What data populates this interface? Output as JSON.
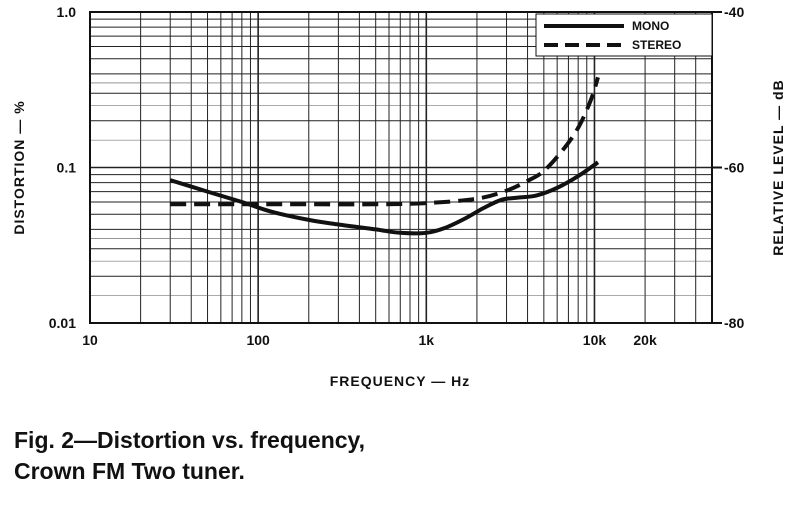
{
  "chart_data": {
    "type": "line",
    "title": "",
    "xlabel": "FREQUENCY — Hz",
    "ylabel": "DISTORTION — %",
    "y2label": "RELATIVE LEVEL — dB",
    "x_scale": "log",
    "y_scale": "log",
    "xlim": [
      10,
      50000
    ],
    "ylim": [
      0.01,
      1.0
    ],
    "y2lim": [
      -80,
      -40
    ],
    "x_ticks": [
      {
        "value": 10,
        "label": "10"
      },
      {
        "value": 100,
        "label": "100"
      },
      {
        "value": 1000,
        "label": "1k"
      },
      {
        "value": 10000,
        "label": "10k"
      },
      {
        "value": 20000,
        "label": "20k"
      }
    ],
    "y_ticks": [
      {
        "value": 1.0,
        "label": "1.0"
      },
      {
        "value": 0.1,
        "label": "0.1"
      },
      {
        "value": 0.01,
        "label": "0.01"
      }
    ],
    "y2_ticks": [
      {
        "value": -40,
        "label": "-40"
      },
      {
        "value": -60,
        "label": "-60"
      },
      {
        "value": -80,
        "label": "-80"
      }
    ],
    "grid": true,
    "legend": "top-right",
    "series": [
      {
        "name": "MONO",
        "style": "solid",
        "x": [
          30,
          50,
          80,
          120,
          200,
          300,
          500,
          700,
          1000,
          1300,
          1700,
          2200,
          2800,
          3500,
          4500,
          6000,
          8000,
          10500
        ],
        "y": [
          0.083,
          0.07,
          0.06,
          0.052,
          0.046,
          0.043,
          0.04,
          0.038,
          0.038,
          0.041,
          0.047,
          0.055,
          0.062,
          0.064,
          0.066,
          0.074,
          0.088,
          0.108
        ]
      },
      {
        "name": "STEREO",
        "style": "dashed",
        "x": [
          30,
          50,
          100,
          200,
          500,
          1000,
          2000,
          3000,
          4000,
          5000,
          6500,
          8000,
          9500,
          10500
        ],
        "y": [
          0.058,
          0.058,
          0.058,
          0.058,
          0.058,
          0.059,
          0.063,
          0.071,
          0.082,
          0.095,
          0.13,
          0.18,
          0.27,
          0.38
        ]
      }
    ]
  },
  "caption": "Fig. 2—Distortion vs. frequency, Crown FM Two tuner."
}
